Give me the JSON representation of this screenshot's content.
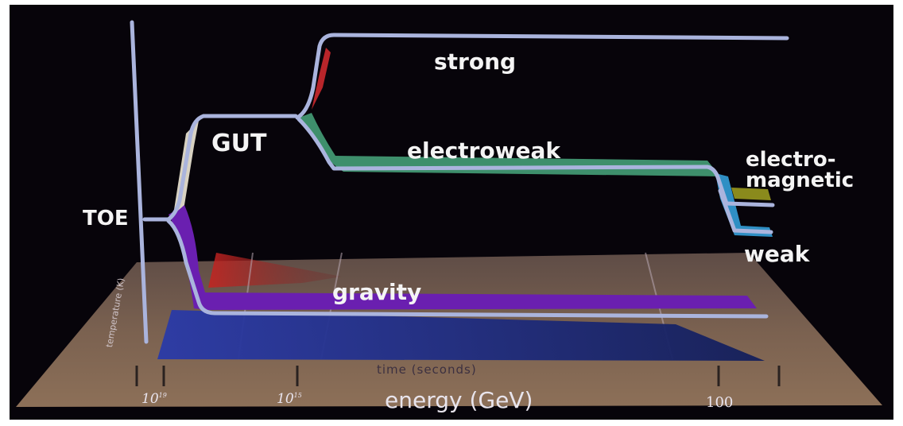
{
  "forces": {
    "toe": "TOE",
    "gut": "GUT",
    "strong": "strong",
    "electroweak": "electroweak",
    "electromagnetic_line1": "electro-",
    "electromagnetic_line2": "magnetic",
    "weak": "weak",
    "gravity": "gravity"
  },
  "axes": {
    "time_label": "time (seconds)",
    "energy_label": "energy (GeV)",
    "vertical_label": "temperature (K)",
    "energy_ticks": [
      {
        "base": "10",
        "exp": "19"
      },
      {
        "base": "10",
        "exp": "15"
      },
      {
        "base": "100",
        "exp": ""
      }
    ]
  },
  "colors": {
    "background": "#07040a",
    "floor": "#8a6e56",
    "line": "#aab4dd",
    "strong": "#b8252a",
    "electroweak": "#3e8f6c",
    "electromagnetic": "#8a8a1c",
    "weak": "#2f8fc4",
    "gravity": "#6a1fb0",
    "gut": "#d8d2c2",
    "floor_blue": "#1d2f8e"
  }
}
